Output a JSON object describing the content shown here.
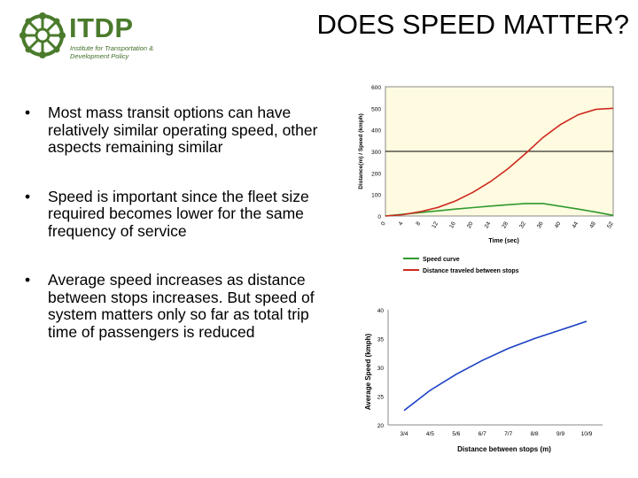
{
  "logo": {
    "name": "ITDP",
    "subtitle": "Institute for Transportation & Development Policy"
  },
  "title": "DOES SPEED MATTER?",
  "bullets": [
    "Most mass transit options can have relatively similar operating speed, other aspects remaining similar",
    "Speed is important since the fleet size required becomes lower for the same frequency of service",
    "Average speed increases as distance between stops increases. But speed of system matters only so far as total trip time of passengers is reduced"
  ],
  "colors": {
    "speed_curve": "#2e9a2e",
    "distance": "#cc2a1f",
    "avg_speed": "#1a3fc4",
    "plot_bg": "#fffbe0",
    "logo_green": "#4a7b2c"
  },
  "chart_data": [
    {
      "type": "line",
      "title": "",
      "xlabel": "Time (sec)",
      "ylabel": "Distance(m) / Speed (kmph)",
      "xlim": [
        0,
        52
      ],
      "ylim": [
        0,
        600
      ],
      "yticks": [
        0,
        100,
        200,
        300,
        400,
        500,
        600
      ],
      "xticks": [
        "0",
        "4",
        "8",
        "12",
        "16",
        "20",
        "24",
        "28",
        "32",
        "36",
        "40",
        "44",
        "48",
        "52"
      ],
      "reference_line_y": 300,
      "legend": {
        "position": "bottom"
      },
      "series": [
        {
          "name": "Speed curve",
          "x": [
            0,
            4,
            8,
            12,
            16,
            20,
            24,
            28,
            32,
            36,
            40,
            44,
            48,
            52
          ],
          "y": [
            0,
            8,
            16,
            24,
            32,
            39,
            46,
            52,
            58,
            58,
            45,
            32,
            18,
            3
          ]
        },
        {
          "name": "Distance traveled between stops",
          "x": [
            0,
            4,
            8,
            12,
            16,
            20,
            24,
            28,
            32,
            36,
            40,
            44,
            48,
            52
          ],
          "y": [
            0,
            6,
            20,
            40,
            70,
            110,
            160,
            220,
            290,
            365,
            425,
            470,
            495,
            500
          ]
        }
      ]
    },
    {
      "type": "line",
      "title": "",
      "xlabel": "Distance between stops (m)",
      "ylabel": "Average Speed (kmph)",
      "ylim": [
        20,
        40
      ],
      "yticks": [
        20,
        25,
        30,
        35,
        40
      ],
      "categories": [
        "3/4",
        "4/5",
        "5/6",
        "6/7",
        "7/7",
        "8/8",
        "9/9",
        "10/9"
      ],
      "series": [
        {
          "name": "",
          "values": [
            22.5,
            26.0,
            28.8,
            31.2,
            33.3,
            35.0,
            36.5,
            38.0
          ]
        }
      ]
    }
  ]
}
